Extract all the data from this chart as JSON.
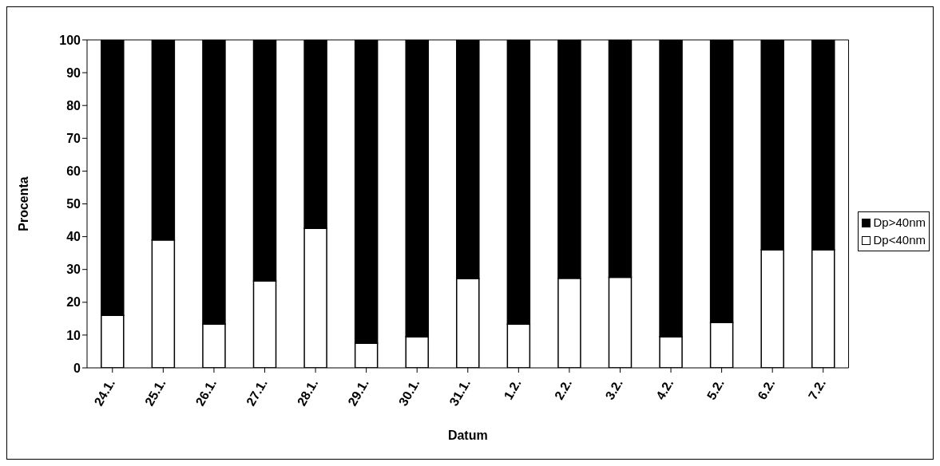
{
  "chart_data": {
    "type": "bar",
    "stacked": true,
    "xlabel": "Datum",
    "ylabel": "Procenta",
    "categories": [
      "24.1.",
      "25.1.",
      "26.1.",
      "27.1.",
      "28.1.",
      "29.1.",
      "30.1.",
      "31.1.",
      "1.2.",
      "2.2.",
      "3.2.",
      "4.2.",
      "5.2.",
      "6.2.",
      "7.2."
    ],
    "series": [
      {
        "name": "Dp<40nm",
        "color": "#ffffff",
        "values": [
          16,
          39,
          13.3,
          26.5,
          42.5,
          7.5,
          9.5,
          27.2,
          13.3,
          27.3,
          27.6,
          9.5,
          13.8,
          36,
          36
        ]
      },
      {
        "name": "Dp>40nm",
        "color": "#000000",
        "values": [
          84,
          61,
          86.7,
          73.5,
          57.5,
          92.5,
          90.5,
          72.8,
          86.7,
          72.7,
          72.4,
          90.5,
          86.2,
          64,
          64
        ]
      }
    ],
    "ylim": [
      0,
      100
    ],
    "yticks": [
      0,
      10,
      20,
      30,
      40,
      50,
      60,
      70,
      80,
      90,
      100
    ],
    "legend": "right"
  }
}
